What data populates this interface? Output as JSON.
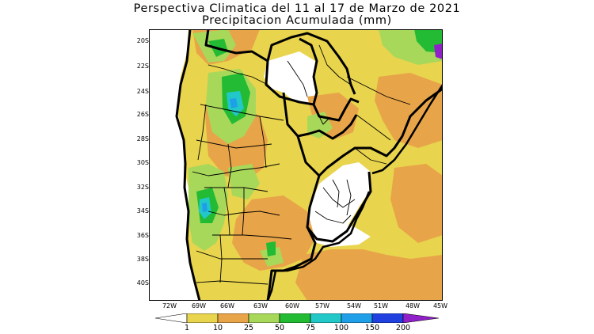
{
  "title": {
    "line1": "Perspectiva Climatica del 11 al 17 de Marzo de 2021",
    "line2": "Precipitacion Acumulada (mm)"
  },
  "lat_labels": [
    "20S",
    "22S",
    "24S",
    "26S",
    "28S",
    "30S",
    "32S",
    "34S",
    "36S",
    "38S",
    "40S"
  ],
  "lon_labels": [
    "72W",
    "69W",
    "66W",
    "63W",
    "60W",
    "57W",
    "54W",
    "51W",
    "48W",
    "45W"
  ],
  "colorbar": {
    "labels": [
      "1",
      "10",
      "25",
      "50",
      "75",
      "100",
      "150",
      "200"
    ],
    "colors": [
      "#ffffff",
      "#e8d44d",
      "#e8a448",
      "#a8d85a",
      "#22bb33",
      "#22c8c8",
      "#1f9fe8",
      "#2040e0",
      "#9020c8"
    ]
  },
  "colors": {
    "land_dry": "#ffffff",
    "precip_1_10": "#e8d44d",
    "precip_10_25": "#e8a448",
    "precip_25_50": "#a8d85a",
    "precip_50_75": "#22bb33",
    "precip_75_100": "#22c8c8",
    "precip_100_150": "#1f9fe8",
    "border": "#000000"
  }
}
